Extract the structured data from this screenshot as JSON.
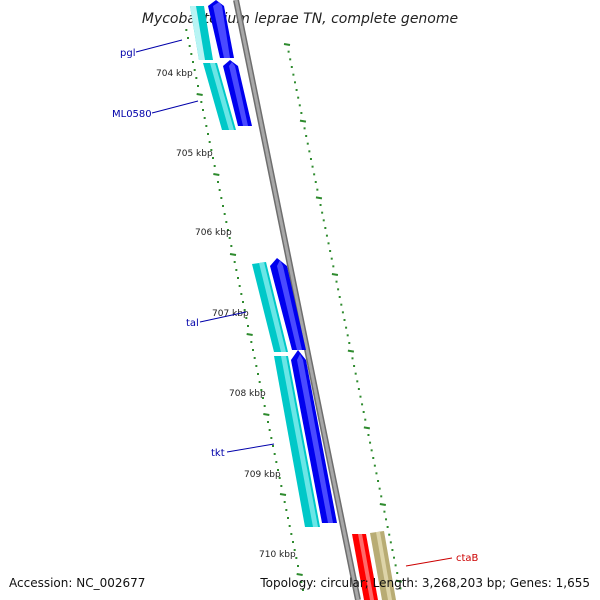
{
  "title": "Mycobacterium leprae TN, complete genome",
  "footer": {
    "accession": "Accession: NC_002677",
    "topology": "Topology: circular; Length: 3,268,203 bp; Genes: 1,655"
  },
  "colors": {
    "backbone": "#8c8c8c",
    "tick": "#2e8b2e",
    "cds": "#0000ee",
    "gene": "#00c8c8",
    "rna_gene": "#ff0000",
    "misc": "#c0b080",
    "label_forward": "#0000aa",
    "label_reverse": "#cc0000"
  },
  "kbp_labels": [
    "704 kbp",
    "705 kbp",
    "706 kbp",
    "707 kbp",
    "708 kbp",
    "709 kbp",
    "710 kbp"
  ],
  "gene_labels": [
    {
      "name": "pgl",
      "strand": "forward"
    },
    {
      "name": "ML0580",
      "strand": "forward"
    },
    {
      "name": "tal",
      "strand": "forward"
    },
    {
      "name": "tkt",
      "strand": "forward"
    },
    {
      "name": "ctaB",
      "strand": "reverse"
    }
  ]
}
